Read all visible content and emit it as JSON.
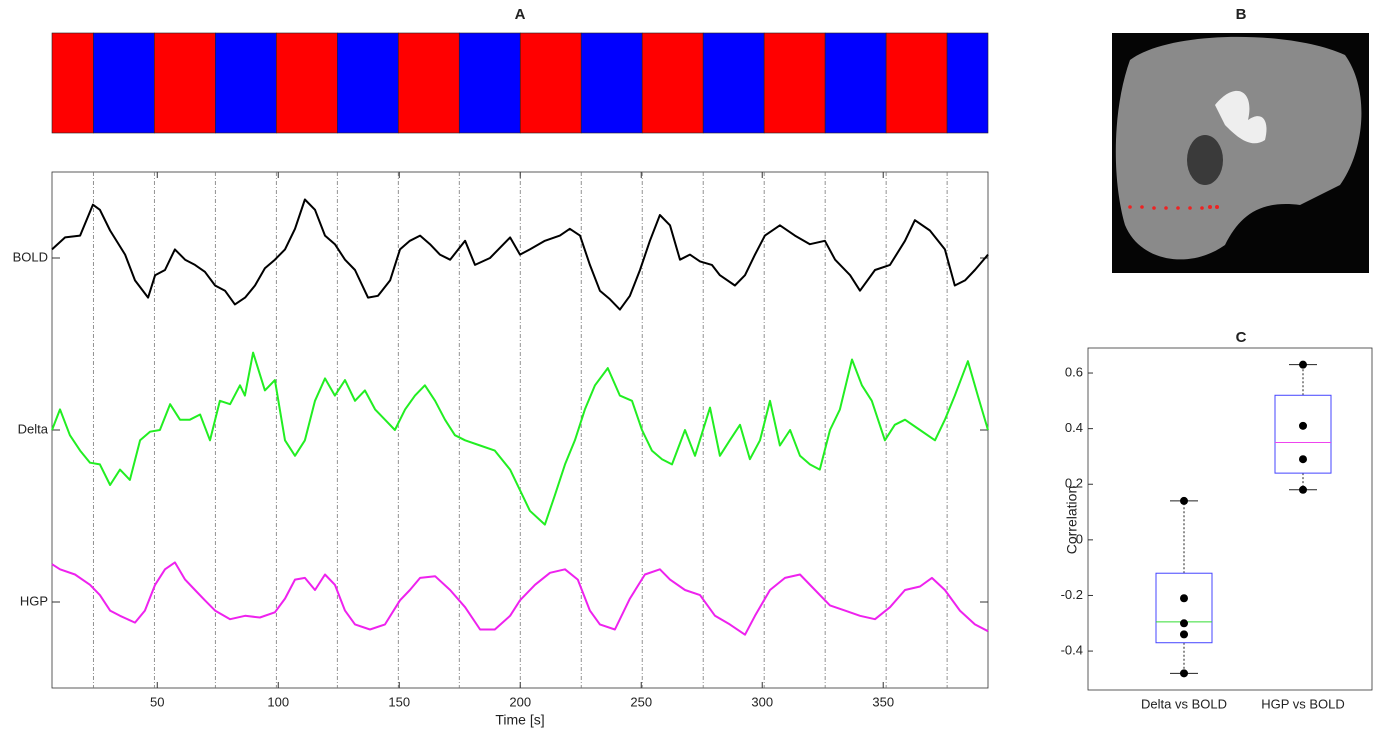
{
  "chart_data": [
    {
      "type": "line",
      "title": "A",
      "xlabel": "Time [s]",
      "xlim": [
        6.5,
        393.3
      ],
      "xticks": [
        50,
        100,
        150,
        200,
        250,
        300,
        350
      ],
      "ylim": [
        -0.5,
        2.5
      ],
      "yticks": [
        {
          "value": 0,
          "label": "HGP"
        },
        {
          "value": 1,
          "label": "Delta"
        },
        {
          "value": 2,
          "label": "BOLD"
        }
      ],
      "blocks": {
        "edges": [
          6.5,
          23.6,
          48.8,
          74,
          99.2,
          124.4,
          149.6,
          174.8,
          200,
          225.2,
          250.4,
          275.6,
          300.8,
          326,
          351.2,
          376.4,
          393.3
        ],
        "colors": [
          "#ff0000",
          "#0000ff"
        ]
      },
      "series": [
        {
          "color": "#000000",
          "x": [
            6.5,
            11.9,
            18.1,
            23.4,
            26.3,
            30.5,
            36.7,
            40.8,
            46.2,
            49.1,
            53.2,
            57.3,
            61.5,
            65.6,
            69.7,
            73.9,
            78.0,
            82.1,
            86.3,
            90.4,
            94.5,
            98.6,
            102.8,
            106.9,
            111.0,
            115.2,
            119.3,
            123.4,
            127.6,
            131.7,
            137.1,
            141.2,
            146.2,
            150.3,
            154.4,
            158.6,
            162.7,
            166.8,
            171.0,
            177.2,
            181.3,
            187.5,
            195.8,
            199.9,
            204.0,
            210.2,
            216.4,
            220.5,
            224.7,
            228.8,
            232.9,
            237.1,
            241.2,
            245.3,
            249.5,
            253.6,
            257.7,
            261.9,
            266.0,
            270.1,
            274.3,
            279.2,
            282.5,
            288.7,
            292.9,
            297.0,
            301.1,
            307.3,
            313.5,
            319.7,
            325.9,
            330.1,
            336.3,
            340.4,
            346.6,
            352.8,
            359.0,
            363.1,
            369.3,
            375.5,
            379.6,
            383.8,
            387.9,
            393.3
          ],
          "values": [
            2.05,
            2.12,
            2.13,
            2.31,
            2.28,
            2.16,
            2.02,
            1.87,
            1.77,
            1.9,
            1.93,
            2.05,
            1.99,
            1.96,
            1.92,
            1.84,
            1.81,
            1.73,
            1.77,
            1.84,
            1.94,
            1.99,
            2.05,
            2.17,
            2.34,
            2.28,
            2.13,
            2.08,
            1.99,
            1.93,
            1.77,
            1.78,
            1.87,
            2.05,
            2.1,
            2.13,
            2.08,
            2.02,
            1.99,
            2.1,
            1.96,
            2.0,
            2.12,
            2.02,
            2.05,
            2.1,
            2.13,
            2.17,
            2.13,
            1.96,
            1.81,
            1.76,
            1.7,
            1.78,
            1.93,
            2.1,
            2.25,
            2.19,
            1.99,
            2.02,
            1.98,
            1.96,
            1.9,
            1.84,
            1.9,
            2.02,
            2.13,
            2.19,
            2.13,
            2.08,
            2.1,
            1.99,
            1.9,
            1.81,
            1.93,
            1.96,
            2.1,
            2.22,
            2.16,
            2.05,
            1.84,
            1.87,
            1.93,
            2.02
          ]
        },
        {
          "color": "#22ee22",
          "x": [
            6.5,
            9.8,
            13.9,
            18.1,
            22.2,
            26.3,
            30.5,
            34.6,
            38.7,
            42.9,
            47.0,
            51.1,
            55.3,
            59.4,
            63.5,
            67.7,
            71.8,
            75.9,
            80.1,
            84.2,
            86.2,
            89.6,
            94.5,
            98.6,
            102.8,
            106.9,
            111.0,
            115.2,
            119.3,
            123.4,
            127.6,
            131.7,
            135.8,
            140.0,
            144.1,
            148.2,
            152.4,
            156.5,
            160.6,
            164.8,
            168.9,
            173.0,
            177.2,
            183.4,
            189.5,
            195.8,
            199.9,
            204.0,
            210.2,
            214.3,
            218.5,
            222.6,
            226.7,
            230.9,
            236.2,
            241.2,
            246.2,
            250.3,
            254.4,
            258.6,
            262.7,
            268.1,
            272.2,
            278.4,
            282.5,
            286.6,
            290.8,
            294.9,
            299.1,
            303.2,
            307.3,
            311.5,
            315.6,
            319.7,
            323.8,
            328.0,
            332.1,
            337.1,
            341.2,
            345.3,
            350.7,
            354.8,
            359.0,
            365.2,
            371.4,
            375.5,
            379.6,
            385.0,
            389.1,
            393.3
          ],
          "values": [
            1.0,
            1.12,
            0.97,
            0.88,
            0.81,
            0.8,
            0.68,
            0.77,
            0.71,
            0.94,
            0.99,
            1.0,
            1.15,
            1.06,
            1.06,
            1.09,
            0.94,
            1.17,
            1.15,
            1.26,
            1.2,
            1.45,
            1.23,
            1.29,
            0.94,
            0.85,
            0.94,
            1.17,
            1.3,
            1.2,
            1.29,
            1.17,
            1.23,
            1.12,
            1.06,
            1.0,
            1.12,
            1.2,
            1.26,
            1.17,
            1.06,
            0.97,
            0.94,
            0.91,
            0.88,
            0.77,
            0.65,
            0.53,
            0.45,
            0.62,
            0.8,
            0.94,
            1.12,
            1.26,
            1.36,
            1.2,
            1.17,
            1.0,
            0.88,
            0.83,
            0.8,
            1.0,
            0.85,
            1.13,
            0.85,
            0.94,
            1.03,
            0.83,
            0.94,
            1.17,
            0.91,
            1.0,
            0.85,
            0.8,
            0.77,
            1.0,
            1.12,
            1.41,
            1.26,
            1.17,
            0.94,
            1.03,
            1.06,
            1.0,
            0.94,
            1.06,
            1.2,
            1.4,
            1.2,
            1.0
          ]
        },
        {
          "color": "#ee22ee",
          "x": [
            6.5,
            9.8,
            16.0,
            22.2,
            26.3,
            30.5,
            34.6,
            40.8,
            44.9,
            49.1,
            53.2,
            57.3,
            61.5,
            65.6,
            69.7,
            73.9,
            80.1,
            86.3,
            92.4,
            98.6,
            102.8,
            106.9,
            111.0,
            115.2,
            119.3,
            123.4,
            127.6,
            131.7,
            137.9,
            144.1,
            150.3,
            154.4,
            158.6,
            164.8,
            171.0,
            177.2,
            183.4,
            189.5,
            195.8,
            199.9,
            206.1,
            212.3,
            218.5,
            223.8,
            228.8,
            232.9,
            239.1,
            245.3,
            251.5,
            257.7,
            261.9,
            268.1,
            274.3,
            280.5,
            286.6,
            292.9,
            297.0,
            303.2,
            309.4,
            315.6,
            321.8,
            328.0,
            334.2,
            340.4,
            346.6,
            352.8,
            359.0,
            365.2,
            370.1,
            375.5,
            381.7,
            387.9,
            393.3
          ],
          "values": [
            0.22,
            0.19,
            0.16,
            0.1,
            0.04,
            -0.05,
            -0.08,
            -0.12,
            -0.05,
            0.1,
            0.19,
            0.23,
            0.13,
            0.07,
            0.01,
            -0.05,
            -0.1,
            -0.08,
            -0.09,
            -0.06,
            0.02,
            0.13,
            0.14,
            0.07,
            0.16,
            0.1,
            -0.05,
            -0.13,
            -0.16,
            -0.13,
            0.01,
            0.07,
            0.14,
            0.15,
            0.07,
            -0.03,
            -0.16,
            -0.16,
            -0.08,
            0.01,
            0.1,
            0.17,
            0.19,
            0.13,
            -0.05,
            -0.13,
            -0.16,
            0.02,
            0.16,
            0.19,
            0.13,
            0.07,
            0.04,
            -0.08,
            -0.13,
            -0.19,
            -0.08,
            0.07,
            0.14,
            0.16,
            0.07,
            -0.02,
            -0.05,
            -0.08,
            -0.1,
            -0.03,
            0.07,
            0.09,
            0.14,
            0.07,
            -0.05,
            -0.13,
            -0.17
          ]
        }
      ]
    },
    {
      "type": "image",
      "title": "B"
    },
    {
      "type": "box",
      "title": "C",
      "ylabel": "Correlation",
      "categories": [
        "Delta vs BOLD",
        "HGP vs BOLD"
      ],
      "ylim": [
        -0.54,
        0.69
      ],
      "yticks": [
        -0.4,
        -0.2,
        0,
        0.2,
        0.4,
        0.6
      ],
      "box_color": "#4444ff",
      "boxes": [
        {
          "low": -0.48,
          "q1": -0.37,
          "median": -0.295,
          "q3": -0.12,
          "high": 0.14,
          "median_color": "#33dd33",
          "points": [
            0.14,
            -0.21,
            -0.3,
            -0.34,
            -0.48
          ]
        },
        {
          "low": 0.18,
          "q1": 0.24,
          "median": 0.35,
          "q3": 0.52,
          "high": 0.63,
          "median_color": "#ee44ee",
          "points": [
            0.63,
            0.41,
            0.29,
            0.18
          ]
        }
      ]
    }
  ]
}
